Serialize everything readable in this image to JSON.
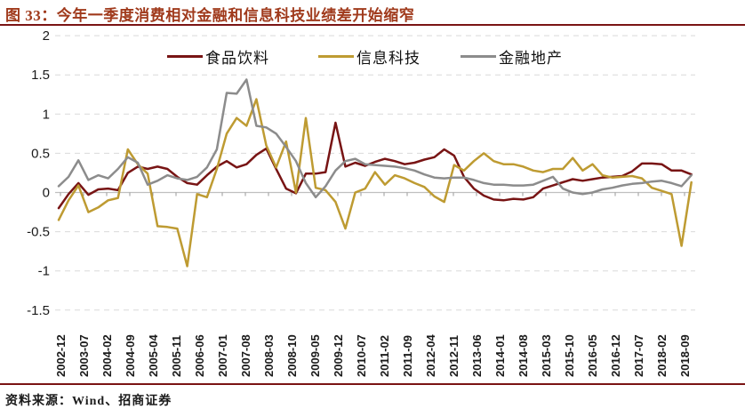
{
  "title": "图 33：今年一季度消费相对金融和信息科技业绩差开始缩窄",
  "source_note": "资料来源：Wind、招商证券",
  "colors": {
    "title": "#A03A1C",
    "rule": "#7A1414",
    "grid": "#D9D9D9",
    "zero_axis": "#BFBFBF",
    "tick": "#999999",
    "food_beverage": "#781414",
    "info_tech": "#BE9B32",
    "financial_realestate": "#8C8C8C"
  },
  "legend": [
    {
      "id": "food-beverage",
      "label": "食品饮料",
      "color": "#781414"
    },
    {
      "id": "info-tech",
      "label": "信息科技",
      "color": "#BE9B32"
    },
    {
      "id": "financial-realestate",
      "label": "金融地产",
      "color": "#8C8C8C"
    }
  ],
  "chart_data": {
    "type": "line",
    "title": "图 33：今年一季度消费相对金融和信息科技业绩差开始缩窄",
    "xlabel": "",
    "ylabel": "",
    "ylim": [
      -1.5,
      2
    ],
    "yticks": [
      2,
      1.5,
      1,
      0.5,
      0,
      -0.5,
      -1,
      -1.5
    ],
    "grid": "dashed-horizontal",
    "legend_position": "top-center",
    "xtick_labels": [
      "2002-12",
      "2003-07",
      "2004-02",
      "2004-09",
      "2005-04",
      "2005-11",
      "2006-06",
      "2007-01",
      "2007-08",
      "2008-03",
      "2008-10",
      "2009-05",
      "2009-12",
      "2010-07",
      "2011-02",
      "2011-09",
      "2012-04",
      "2012-11",
      "2013-06",
      "2014-01",
      "2014-08",
      "2015-03",
      "2015-10",
      "2016-05",
      "2016-12",
      "2017-07",
      "2018-02",
      "2018-09"
    ],
    "x": [
      "2002-12",
      "2003-03",
      "2003-06",
      "2003-09",
      "2003-12",
      "2004-03",
      "2004-06",
      "2004-09",
      "2004-12",
      "2005-03",
      "2005-06",
      "2005-09",
      "2005-12",
      "2006-03",
      "2006-06",
      "2006-09",
      "2006-12",
      "2007-03",
      "2007-06",
      "2007-09",
      "2007-12",
      "2008-03",
      "2008-06",
      "2008-09",
      "2008-12",
      "2009-03",
      "2009-06",
      "2009-09",
      "2009-12",
      "2010-03",
      "2010-06",
      "2010-09",
      "2010-12",
      "2011-03",
      "2011-06",
      "2011-09",
      "2011-12",
      "2012-03",
      "2012-06",
      "2012-09",
      "2012-12",
      "2013-03",
      "2013-06",
      "2013-09",
      "2013-12",
      "2014-03",
      "2014-06",
      "2014-09",
      "2014-12",
      "2015-03",
      "2015-06",
      "2015-09",
      "2015-12",
      "2016-03",
      "2016-06",
      "2016-09",
      "2016-12",
      "2017-03",
      "2017-06",
      "2017-09",
      "2017-12",
      "2018-03",
      "2018-06",
      "2018-09",
      "2018-12"
    ],
    "series": [
      {
        "id": "food-beverage",
        "name": "食品饮料",
        "color": "#781414",
        "values": [
          -0.2,
          -0.02,
          0.12,
          -0.03,
          0.04,
          0.05,
          0.03,
          0.25,
          0.33,
          0.3,
          0.33,
          0.3,
          0.2,
          0.12,
          0.1,
          0.22,
          0.33,
          0.4,
          0.32,
          0.36,
          0.48,
          0.56,
          0.3,
          0.05,
          -0.01,
          0.24,
          0.24,
          0.26,
          0.89,
          0.33,
          0.38,
          0.34,
          0.39,
          0.43,
          0.4,
          0.36,
          0.38,
          0.42,
          0.45,
          0.55,
          0.47,
          0.2,
          0.05,
          -0.04,
          -0.09,
          -0.1,
          -0.08,
          -0.09,
          -0.06,
          0.05,
          0.09,
          0.13,
          0.17,
          0.15,
          0.17,
          0.19,
          0.2,
          0.21,
          0.27,
          0.37,
          0.37,
          0.36,
          0.28,
          0.28,
          0.23
        ]
      },
      {
        "id": "info-tech",
        "name": "信息科技",
        "color": "#BE9B32",
        "values": [
          -0.35,
          -0.1,
          0.09,
          -0.25,
          -0.19,
          -0.1,
          -0.07,
          0.55,
          0.36,
          0.24,
          -0.43,
          -0.44,
          -0.46,
          -0.94,
          -0.02,
          -0.06,
          0.3,
          0.75,
          0.95,
          0.85,
          1.19,
          0.6,
          0.32,
          0.65,
          0.0,
          0.95,
          0.06,
          0.03,
          -0.12,
          -0.46,
          0.0,
          0.05,
          0.26,
          0.1,
          0.22,
          0.18,
          0.12,
          0.07,
          -0.05,
          -0.12,
          0.35,
          0.28,
          0.4,
          0.5,
          0.4,
          0.36,
          0.36,
          0.33,
          0.28,
          0.26,
          0.3,
          0.3,
          0.44,
          0.28,
          0.36,
          0.22,
          0.19,
          0.2,
          0.21,
          0.18,
          0.06,
          0.02,
          -0.02,
          -0.68,
          0.13
        ]
      },
      {
        "id": "financial-realestate",
        "name": "金融地产",
        "color": "#8C8C8C",
        "values": [
          0.08,
          0.2,
          0.41,
          0.16,
          0.22,
          0.18,
          0.3,
          0.45,
          0.38,
          0.1,
          0.15,
          0.22,
          0.18,
          0.16,
          0.2,
          0.32,
          0.55,
          1.27,
          1.26,
          1.44,
          0.85,
          0.83,
          0.75,
          0.58,
          0.4,
          0.12,
          -0.06,
          0.08,
          0.28,
          0.4,
          0.43,
          0.36,
          0.35,
          0.34,
          0.33,
          0.31,
          0.28,
          0.23,
          0.19,
          0.18,
          0.19,
          0.19,
          0.16,
          0.12,
          0.1,
          0.1,
          0.09,
          0.09,
          0.1,
          0.15,
          0.2,
          0.05,
          0.0,
          -0.02,
          0.0,
          0.04,
          0.06,
          0.09,
          0.11,
          0.12,
          0.14,
          0.15,
          0.12,
          0.08,
          0.22
        ]
      }
    ]
  }
}
